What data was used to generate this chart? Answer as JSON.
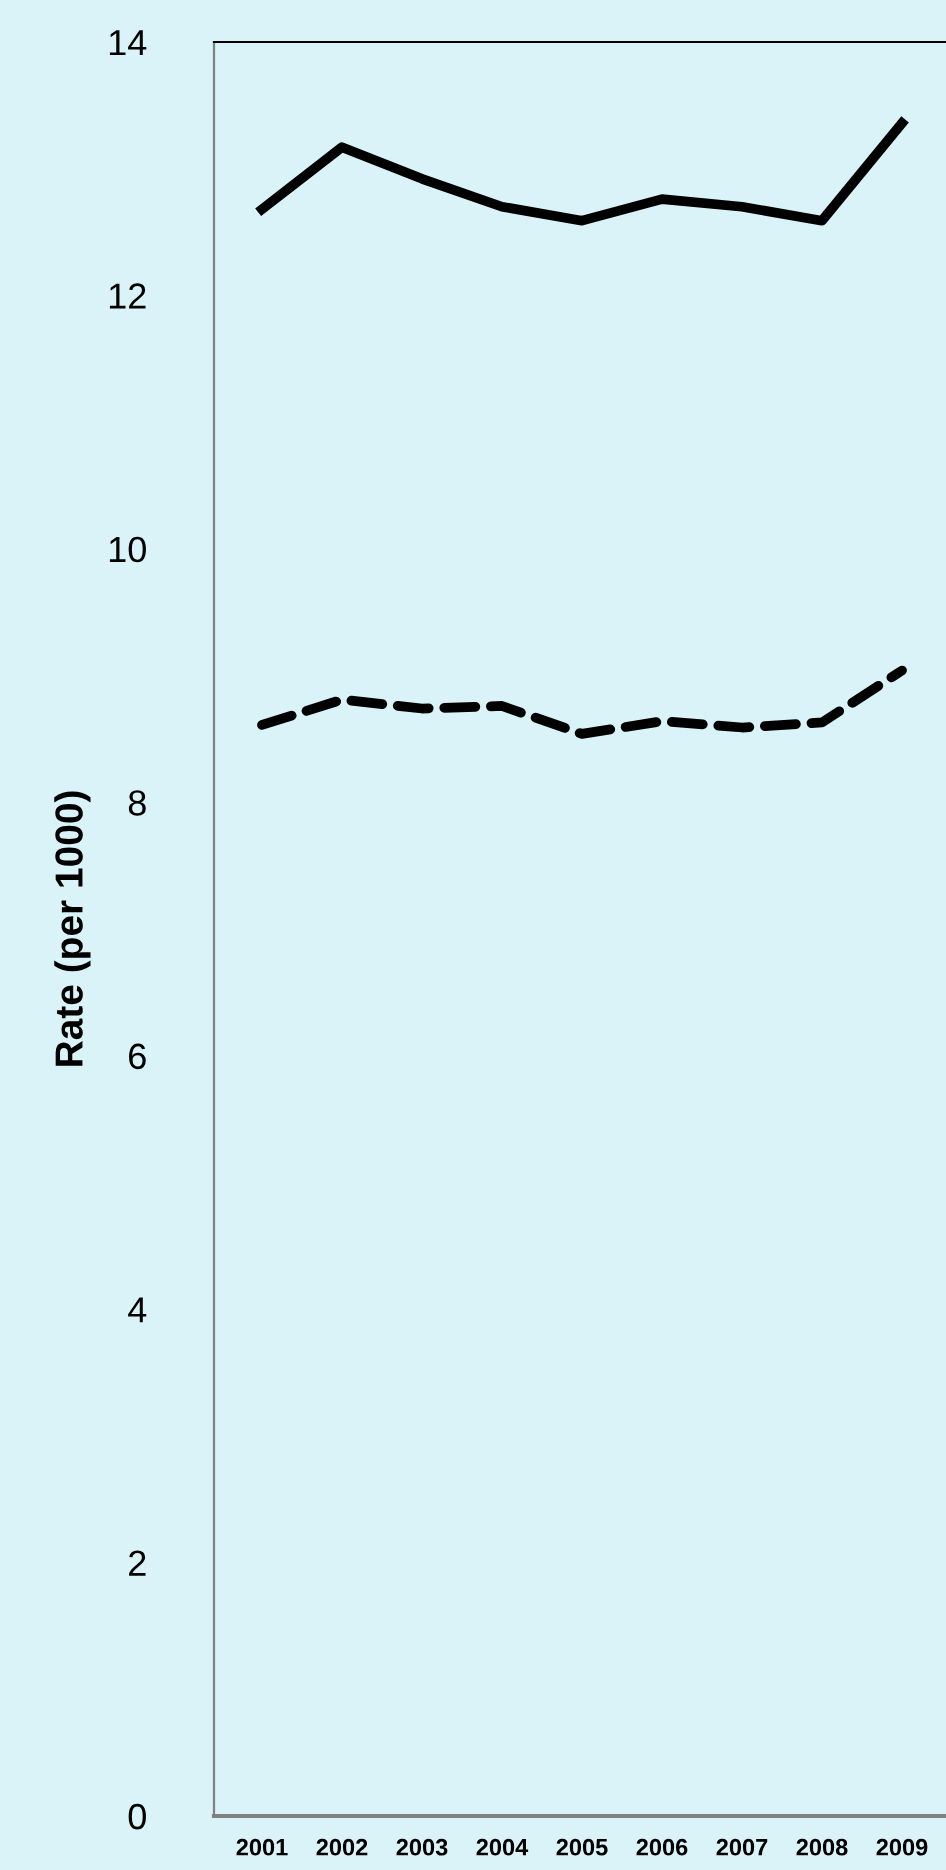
{
  "chart_data": {
    "type": "line",
    "ylabel": "Rate (per 1000)",
    "categories": [
      "2001",
      "2002",
      "2003",
      "2004",
      "2005",
      "2006",
      "2007",
      "2008",
      "2009"
    ],
    "series": [
      {
        "color": "#000000",
        "line_style": "solid",
        "values": [
          12.68,
          13.17,
          12.92,
          12.7,
          12.59,
          12.76,
          12.7,
          12.59,
          13.36
        ]
      },
      {
        "color": "#000000",
        "line_style": "dashed",
        "values": [
          8.61,
          8.81,
          8.74,
          8.76,
          8.54,
          8.64,
          8.59,
          8.63,
          9.04
        ]
      }
    ],
    "ylim": [
      0,
      14
    ],
    "yticks": [
      0,
      2,
      4,
      6,
      8,
      10,
      12,
      14
    ],
    "grid": false,
    "marker": "none"
  }
}
